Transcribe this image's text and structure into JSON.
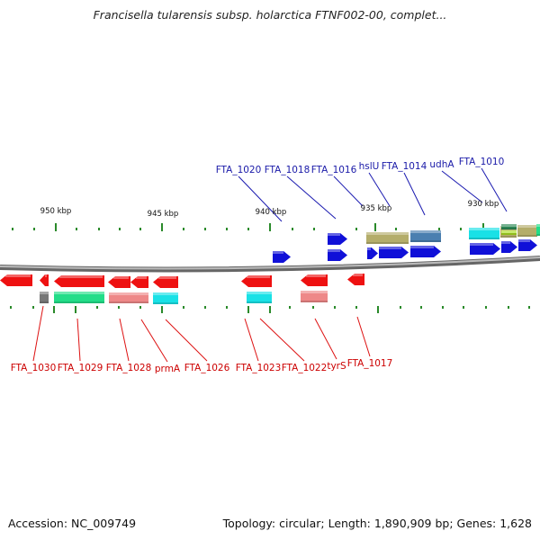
{
  "header": {
    "title": "Francisella tularensis subsp. holarctica FTNF002-00, complet..."
  },
  "footer": {
    "accession": "Accession: NC_009749",
    "topology": "Topology: circular; Length: 1,890,909 bp; Genes: 1,628"
  },
  "axis": {
    "unit": "kbp",
    "ticks": [
      {
        "kbp": 950,
        "label": "950 kbp"
      },
      {
        "kbp": 945,
        "label": "945 kbp"
      },
      {
        "kbp": 940,
        "label": "940 kbp"
      },
      {
        "kbp": 935,
        "label": "935 kbp"
      },
      {
        "kbp": 930,
        "label": "930 kbp"
      }
    ]
  },
  "gene_labels": {
    "forward": [
      {
        "name": "FTA_1020"
      },
      {
        "name": "FTA_1018"
      },
      {
        "name": "FTA_1016"
      },
      {
        "name": "hslU"
      },
      {
        "name": "FTA_1014"
      },
      {
        "name": "udhA"
      },
      {
        "name": "FTA_1010"
      }
    ],
    "reverse": [
      {
        "name": "FTA_1030"
      },
      {
        "name": "FTA_1029"
      },
      {
        "name": "FTA_1028"
      },
      {
        "name": "prmA"
      },
      {
        "name": "FTA_1026"
      },
      {
        "name": "FTA_1023"
      },
      {
        "name": "FTA_1022"
      },
      {
        "name": "tyrS"
      },
      {
        "name": "FTA_1017"
      }
    ]
  },
  "colors": {
    "forward_gene": "#1010d8",
    "reverse_gene": "#ee1111",
    "cog_cyan": "#19e1e6",
    "cog_khaki": "#b4ad6a",
    "cog_steelblue": "#4a7fb0",
    "cog_green": "#22dd88",
    "cog_salmon": "#ee8888",
    "cog_gray": "#777777",
    "cog_lime": "#aadd22",
    "backbone": "#888888",
    "tick": "#2a8a2a",
    "forward_label": "#1a1aa8",
    "reverse_label": "#cc0000"
  }
}
